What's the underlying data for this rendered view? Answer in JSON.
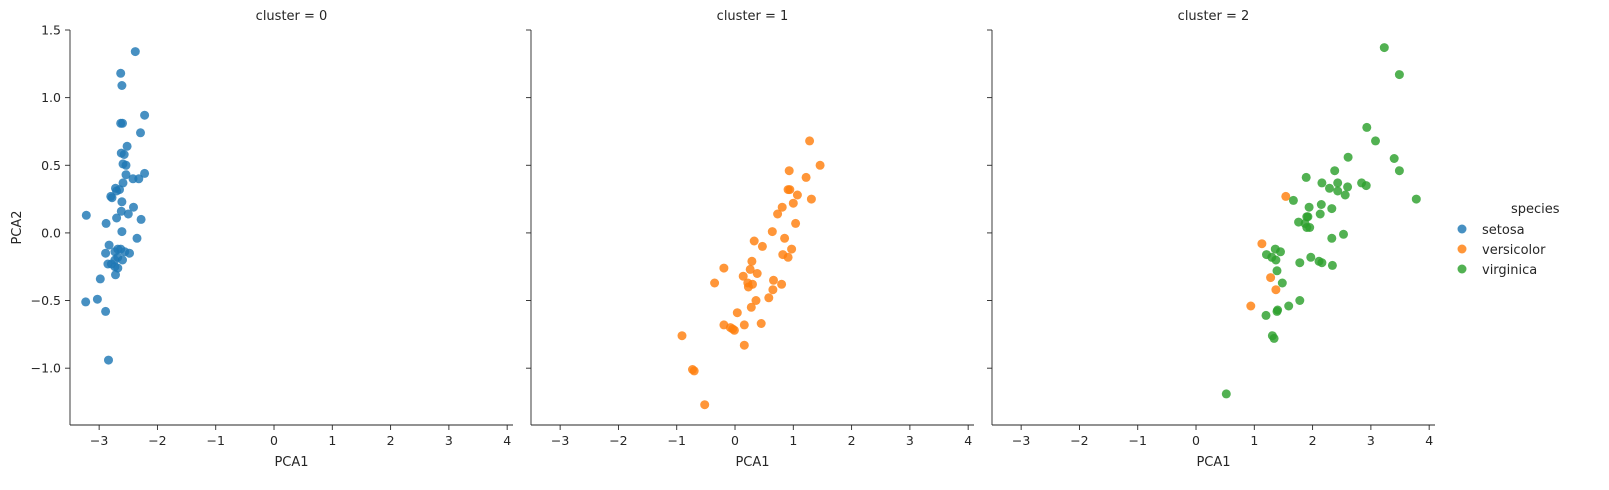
{
  "chart_data": {
    "type": "scatter",
    "facet_variable": "cluster",
    "xlabel": "PCA1",
    "ylabel": "PCA2",
    "xlim": [
      -3.5,
      4.1
    ],
    "ylim": [
      -1.42,
      1.5
    ],
    "xticks": [
      -3,
      -2,
      -1,
      0,
      1,
      2,
      3,
      4
    ],
    "xtick_labels": [
      "−3",
      "−2",
      "−1",
      "0",
      "1",
      "2",
      "3",
      "4"
    ],
    "yticks": [
      -1.0,
      -0.5,
      0.0,
      0.5,
      1.0,
      1.5
    ],
    "ytick_labels": [
      "−1.0",
      "−0.5",
      "0.0",
      "0.5",
      "1.0",
      "1.5"
    ],
    "legend": {
      "title": "species",
      "placement": "right",
      "entries": [
        {
          "name": "setosa",
          "color": "#1f77b4"
        },
        {
          "name": "versicolor",
          "color": "#ff7f0e"
        },
        {
          "name": "virginica",
          "color": "#2ca02c"
        }
      ]
    },
    "panels": [
      {
        "title": "cluster = 0",
        "series": [
          {
            "name": "setosa",
            "color": "#1f77b4",
            "points": [
              [
                -2.38,
                1.34
              ],
              [
                -2.63,
                1.18
              ],
              [
                -2.61,
                1.09
              ],
              [
                -2.22,
                0.87
              ],
              [
                -2.63,
                0.81
              ],
              [
                -2.6,
                0.81
              ],
              [
                -2.29,
                0.74
              ],
              [
                -2.52,
                0.64
              ],
              [
                -2.62,
                0.59
              ],
              [
                -2.57,
                0.58
              ],
              [
                -2.59,
                0.51
              ],
              [
                -2.54,
                0.5
              ],
              [
                -2.54,
                0.43
              ],
              [
                -2.22,
                0.44
              ],
              [
                -2.42,
                0.4
              ],
              [
                -2.32,
                0.4
              ],
              [
                -2.59,
                0.37
              ],
              [
                -2.72,
                0.33
              ],
              [
                -2.65,
                0.32
              ],
              [
                -2.7,
                0.31
              ],
              [
                -2.8,
                0.27
              ],
              [
                -2.78,
                0.26
              ],
              [
                -2.61,
                0.23
              ],
              [
                -2.41,
                0.19
              ],
              [
                -2.62,
                0.16
              ],
              [
                -2.5,
                0.14
              ],
              [
                -3.22,
                0.13
              ],
              [
                -2.7,
                0.11
              ],
              [
                -2.28,
                0.1
              ],
              [
                -2.88,
                0.07
              ],
              [
                -2.61,
                0.01
              ],
              [
                -2.35,
                -0.04
              ],
              [
                -2.83,
                -0.09
              ],
              [
                -2.68,
                -0.12
              ],
              [
                -2.63,
                -0.12
              ],
              [
                -2.56,
                -0.14
              ],
              [
                -2.73,
                -0.14
              ],
              [
                -2.89,
                -0.15
              ],
              [
                -2.48,
                -0.15
              ],
              [
                -2.68,
                -0.18
              ],
              [
                -2.73,
                -0.2
              ],
              [
                -2.6,
                -0.2
              ],
              [
                -2.85,
                -0.23
              ],
              [
                -2.79,
                -0.23
              ],
              [
                -2.73,
                -0.25
              ],
              [
                -2.68,
                -0.26
              ],
              [
                -2.72,
                -0.31
              ],
              [
                -2.98,
                -0.34
              ],
              [
                -3.03,
                -0.49
              ],
              [
                -3.23,
                -0.51
              ],
              [
                -2.89,
                -0.58
              ],
              [
                -2.84,
                -0.94
              ]
            ]
          }
        ]
      },
      {
        "title": "cluster = 1",
        "series": [
          {
            "name": "versicolor",
            "color": "#ff7f0e",
            "points": [
              [
                1.28,
                0.68
              ],
              [
                1.46,
                0.5
              ],
              [
                0.93,
                0.46
              ],
              [
                1.22,
                0.41
              ],
              [
                0.91,
                0.32
              ],
              [
                0.94,
                0.32
              ],
              [
                1.07,
                0.28
              ],
              [
                1.31,
                0.25
              ],
              [
                1.0,
                0.22
              ],
              [
                0.81,
                0.19
              ],
              [
                0.73,
                0.14
              ],
              [
                1.04,
                0.07
              ],
              [
                0.64,
                0.01
              ],
              [
                0.85,
                -0.04
              ],
              [
                0.33,
                -0.06
              ],
              [
                0.47,
                -0.1
              ],
              [
                0.97,
                -0.12
              ],
              [
                0.82,
                -0.16
              ],
              [
                0.91,
                -0.18
              ],
              [
                0.29,
                -0.21
              ],
              [
                -0.19,
                -0.26
              ],
              [
                0.26,
                -0.27
              ],
              [
                0.38,
                -0.3
              ],
              [
                0.14,
                -0.32
              ],
              [
                0.66,
                -0.35
              ],
              [
                -0.35,
                -0.37
              ],
              [
                0.22,
                -0.37
              ],
              [
                0.3,
                -0.38
              ],
              [
                0.8,
                -0.38
              ],
              [
                0.23,
                -0.4
              ],
              [
                0.65,
                -0.42
              ],
              [
                0.58,
                -0.48
              ],
              [
                0.36,
                -0.5
              ],
              [
                0.28,
                -0.55
              ],
              [
                0.04,
                -0.59
              ],
              [
                0.45,
                -0.67
              ],
              [
                0.16,
                -0.68
              ],
              [
                -0.19,
                -0.68
              ],
              [
                -0.08,
                -0.7
              ],
              [
                -0.04,
                -0.71
              ],
              [
                -0.01,
                -0.72
              ],
              [
                -0.91,
                -0.76
              ],
              [
                0.16,
                -0.83
              ],
              [
                -0.73,
                -1.01
              ],
              [
                -0.7,
                -1.02
              ],
              [
                -0.52,
                -1.27
              ]
            ]
          }
        ]
      },
      {
        "title": "cluster = 2",
        "series": [
          {
            "name": "versicolor",
            "color": "#ff7f0e",
            "points": [
              [
                1.54,
                0.27
              ],
              [
                1.13,
                -0.08
              ],
              [
                1.28,
                -0.33
              ],
              [
                1.37,
                -0.42
              ],
              [
                0.94,
                -0.54
              ]
            ]
          },
          {
            "name": "virginica",
            "color": "#2ca02c",
            "points": [
              [
                3.23,
                1.37
              ],
              [
                3.49,
                1.17
              ],
              [
                2.93,
                0.78
              ],
              [
                3.08,
                0.68
              ],
              [
                2.61,
                0.56
              ],
              [
                3.4,
                0.55
              ],
              [
                3.49,
                0.46
              ],
              [
                2.38,
                0.46
              ],
              [
                1.89,
                0.41
              ],
              [
                2.16,
                0.37
              ],
              [
                2.43,
                0.37
              ],
              [
                2.84,
                0.37
              ],
              [
                2.92,
                0.35
              ],
              [
                2.6,
                0.34
              ],
              [
                2.29,
                0.33
              ],
              [
                2.43,
                0.31
              ],
              [
                2.56,
                0.28
              ],
              [
                3.78,
                0.25
              ],
              [
                1.67,
                0.24
              ],
              [
                2.15,
                0.21
              ],
              [
                1.94,
                0.19
              ],
              [
                2.33,
                0.18
              ],
              [
                2.13,
                0.14
              ],
              [
                1.9,
                0.12
              ],
              [
                1.92,
                0.12
              ],
              [
                1.76,
                0.08
              ],
              [
                1.87,
                0.07
              ],
              [
                1.9,
                0.04
              ],
              [
                1.95,
                0.04
              ],
              [
                2.53,
                -0.01
              ],
              [
                2.33,
                -0.04
              ],
              [
                1.36,
                -0.12
              ],
              [
                1.21,
                -0.16
              ],
              [
                1.3,
                -0.18
              ],
              [
                1.45,
                -0.14
              ],
              [
                1.97,
                -0.18
              ],
              [
                1.37,
                -0.2
              ],
              [
                2.11,
                -0.21
              ],
              [
                2.16,
                -0.22
              ],
              [
                1.78,
                -0.22
              ],
              [
                2.34,
                -0.24
              ],
              [
                1.39,
                -0.28
              ],
              [
                1.48,
                -0.37
              ],
              [
                1.78,
                -0.5
              ],
              [
                1.59,
                -0.54
              ],
              [
                1.4,
                -0.57
              ],
              [
                1.39,
                -0.58
              ],
              [
                1.2,
                -0.61
              ],
              [
                1.31,
                -0.76
              ],
              [
                1.34,
                -0.78
              ],
              [
                0.52,
                -1.19
              ]
            ]
          }
        ]
      }
    ]
  }
}
